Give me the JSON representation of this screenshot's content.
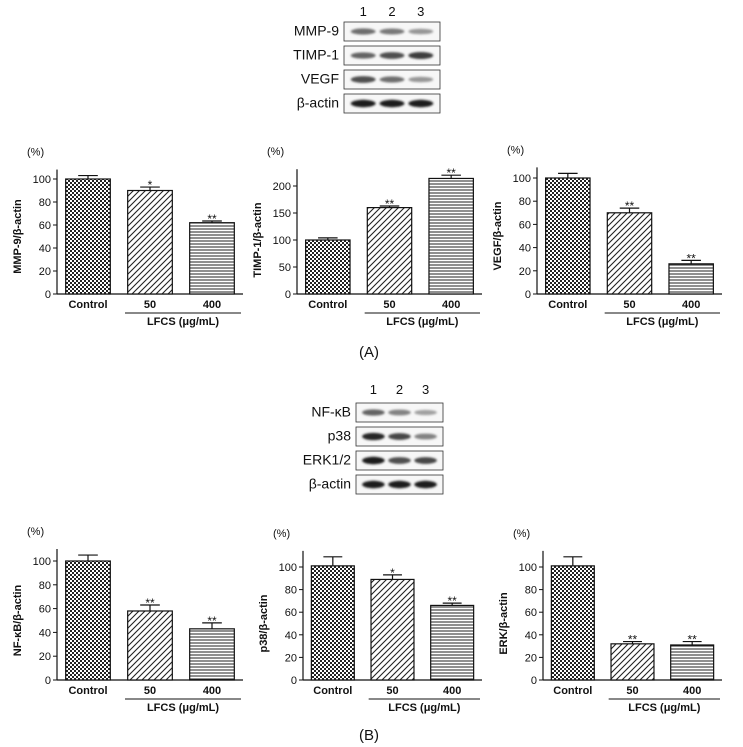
{
  "panels": [
    {
      "label": "(A)",
      "blot": {
        "lanes": [
          "1",
          "2",
          "3"
        ],
        "rows": [
          {
            "name": "MMP-9",
            "intensity": [
              0.55,
              0.5,
              0.35
            ]
          },
          {
            "name": "TIMP-1",
            "intensity": [
              0.6,
              0.7,
              0.8
            ]
          },
          {
            "name": "VEGF",
            "intensity": [
              0.7,
              0.55,
              0.35
            ]
          },
          {
            "name": "β-actin",
            "intensity": [
              0.95,
              0.95,
              0.95
            ]
          }
        ]
      }
    },
    {
      "label": "(B)",
      "blot": {
        "lanes": [
          "1",
          "2",
          "3"
        ],
        "rows": [
          {
            "name": "NF-κB",
            "intensity": [
              0.6,
              0.45,
              0.3
            ]
          },
          {
            "name": "p38",
            "intensity": [
              0.9,
              0.75,
              0.45
            ]
          },
          {
            "name": "ERK1/2",
            "intensity": [
              0.95,
              0.7,
              0.75
            ]
          },
          {
            "name": "β-actin",
            "intensity": [
              0.95,
              0.95,
              0.95
            ]
          }
        ]
      }
    }
  ],
  "chart_data": [
    {
      "type": "bar",
      "panel": "A",
      "unit": "(%)",
      "ylabel": "MMP-9/β-actin",
      "categories": [
        "Control",
        "50",
        "400"
      ],
      "values": [
        100,
        90,
        62
      ],
      "errors": [
        3,
        3,
        1.5
      ],
      "significance": [
        "",
        "*",
        "**"
      ],
      "group_label": "LFCS (μg/mL)",
      "ylim": [
        0,
        100
      ],
      "yticks": [
        0,
        20,
        40,
        60,
        80,
        100
      ],
      "patterns": [
        "checker",
        "diagonal",
        "horizontal"
      ]
    },
    {
      "type": "bar",
      "panel": "A",
      "unit": "(%)",
      "ylabel": "TIMP-1/β-actin",
      "categories": [
        "Control",
        "50",
        "400"
      ],
      "values": [
        100,
        160,
        214
      ],
      "errors": [
        4,
        3,
        6
      ],
      "significance": [
        "",
        "**",
        "**"
      ],
      "group_label": "LFCS (μg/mL)",
      "ylim": [
        0,
        200
      ],
      "yticks": [
        0,
        50,
        100,
        150,
        200
      ],
      "patterns": [
        "checker",
        "diagonal",
        "horizontal"
      ]
    },
    {
      "type": "bar",
      "panel": "A",
      "unit": "(%)",
      "ylabel": "VEGF/β-actin",
      "categories": [
        "Control",
        "50",
        "400"
      ],
      "values": [
        100,
        70,
        26
      ],
      "errors": [
        4,
        4,
        3
      ],
      "significance": [
        "",
        "**",
        "**"
      ],
      "group_label": "LFCS (μg/mL)",
      "ylim": [
        0,
        100
      ],
      "yticks": [
        0,
        20,
        40,
        60,
        80,
        100
      ],
      "patterns": [
        "checker",
        "diagonal",
        "horizontal"
      ]
    },
    {
      "type": "bar",
      "panel": "B",
      "unit": "(%)",
      "ylabel": "NF-κB/β-actin",
      "categories": [
        "Control",
        "50",
        "400"
      ],
      "values": [
        100,
        58,
        43
      ],
      "errors": [
        5,
        5,
        5
      ],
      "significance": [
        "",
        "**",
        "**"
      ],
      "group_label": "LFCS (μg/mL)",
      "ylim": [
        0,
        100
      ],
      "yticks": [
        0,
        20,
        40,
        60,
        80,
        100
      ],
      "patterns": [
        "checker",
        "diagonal",
        "horizontal"
      ]
    },
    {
      "type": "bar",
      "panel": "B",
      "unit": "(%)",
      "ylabel": "p38/β-actin",
      "categories": [
        "Control",
        "50",
        "400"
      ],
      "values": [
        101,
        89,
        66
      ],
      "errors": [
        8,
        4,
        2
      ],
      "significance": [
        "",
        "*",
        "**"
      ],
      "group_label": "LFCS (μg/mL)",
      "ylim": [
        0,
        100
      ],
      "yticks": [
        0,
        20,
        40,
        60,
        80,
        100
      ],
      "patterns": [
        "checker",
        "diagonal",
        "horizontal"
      ]
    },
    {
      "type": "bar",
      "panel": "B",
      "unit": "(%)",
      "ylabel": "ERK/β-actin",
      "categories": [
        "Control",
        "50",
        "400"
      ],
      "values": [
        101,
        32,
        31
      ],
      "errors": [
        8,
        2,
        3
      ],
      "significance": [
        "",
        "**",
        "**"
      ],
      "group_label": "LFCS (μg/mL)",
      "ylim": [
        0,
        100
      ],
      "yticks": [
        0,
        20,
        40,
        60,
        80,
        100
      ],
      "patterns": [
        "checker",
        "diagonal",
        "horizontal"
      ]
    }
  ]
}
